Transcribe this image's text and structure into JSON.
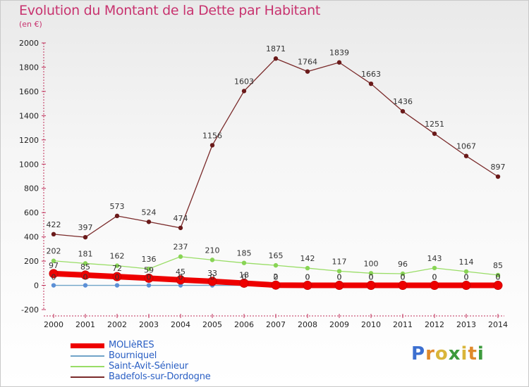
{
  "header": {
    "title": "Evolution du Montant de la Dette par Habitant",
    "subtitle": "(en €)"
  },
  "colors": {
    "title": "#c8336f",
    "axis_text": "#222222",
    "legend_text": "#2a5fc4"
  },
  "logo": {
    "text": "Proxiti",
    "letter_colors": [
      "#3c6fd0",
      "#e08a2b",
      "#d9b53a",
      "#3c9a3c",
      "#d9b53a",
      "#e08a2b",
      "#3c9a3c"
    ]
  },
  "chart_data": {
    "type": "line",
    "title": "Evolution du Montant de la Dette par Habitant",
    "subtitle": "(en €)",
    "xlabel": "",
    "ylabel": "",
    "x": [
      "2000",
      "2001",
      "2002",
      "2003",
      "2004",
      "2005",
      "2006",
      "2007",
      "2008",
      "2009",
      "2010",
      "2011",
      "2012",
      "2013",
      "2014"
    ],
    "ylim": [
      -200,
      2000
    ],
    "yticks": [
      -200,
      0,
      200,
      400,
      600,
      800,
      1000,
      1200,
      1400,
      1600,
      1800,
      2000
    ],
    "grid": false,
    "legend_position": "bottom-left",
    "series": [
      {
        "name": "MOLIèRES",
        "color": "#ee0000",
        "marker_fill": "#ee0000",
        "values": [
          97,
          85,
          72,
          59,
          45,
          33,
          18,
          2,
          0,
          0,
          0,
          0,
          0,
          0,
          0
        ],
        "labels": [
          "97",
          "85",
          "72",
          "59",
          "45",
          "33",
          "18",
          "2",
          "0",
          "0",
          "0",
          "0",
          "0",
          "0",
          "0"
        ]
      },
      {
        "name": "Bourniquel",
        "color": "#6fa3c8",
        "marker_fill": "#5b8fd6",
        "values": [
          0,
          0,
          0,
          0,
          0,
          0,
          0,
          0,
          0,
          0,
          0,
          0,
          0,
          0,
          0
        ],
        "labels": [
          "0",
          "0",
          "0",
          "0",
          "0",
          "0",
          "0",
          "0",
          "0",
          "0",
          "0",
          "0",
          "0",
          "0",
          "0"
        ]
      },
      {
        "name": "Saint-Avit-Sénieur",
        "color": "#99dd66",
        "marker_fill": "#88d455",
        "values": [
          202,
          181,
          162,
          136,
          237,
          210,
          185,
          165,
          142,
          117,
          100,
          96,
          143,
          114,
          85
        ],
        "labels": [
          "202",
          "181",
          "162",
          "136",
          "237",
          "210",
          "185",
          "165",
          "142",
          "117",
          "100",
          "96",
          "143",
          "114",
          "85"
        ]
      },
      {
        "name": "Badefols-sur-Dordogne",
        "color": "#7a2a2a",
        "marker_fill": "#6a1a1a",
        "values": [
          422,
          397,
          573,
          524,
          474,
          1156,
          1603,
          1871,
          1764,
          1839,
          1663,
          1436,
          1251,
          1067,
          897
        ],
        "labels": [
          "422",
          "397",
          "573",
          "524",
          "474",
          "1156",
          "1603",
          "1871",
          "1764",
          "1839",
          "1663",
          "1436",
          "1251",
          "1067",
          "897"
        ]
      }
    ]
  }
}
